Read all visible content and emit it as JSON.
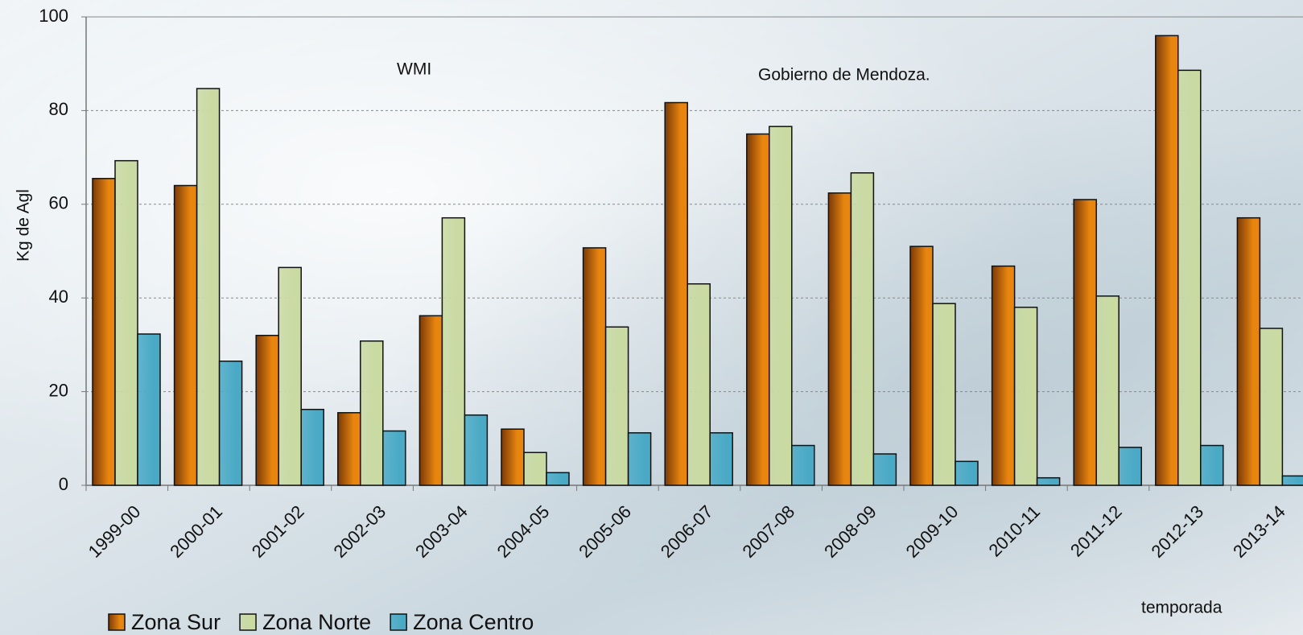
{
  "chart_data": {
    "type": "bar",
    "annotations": [
      "WMI",
      "Gobierno de Mendoza."
    ],
    "y_label": "Kg de Agl",
    "x_label": "temporada",
    "categories": [
      "1999-00",
      "2000-01",
      "2001-02",
      "2002-03",
      "2003-04",
      "2004-05",
      "2005-06",
      "2006-07",
      "2007-08",
      "2008-09",
      "2009-10",
      "2010-11",
      "2011-12",
      "2012-13",
      "2013-14"
    ],
    "series": [
      {
        "name": "Zona Sur",
        "color": "#e8850f",
        "values": [
          65.5,
          64,
          32,
          15.5,
          36.2,
          12,
          50.7,
          81.7,
          75,
          62.4,
          51,
          46.8,
          61,
          96,
          57.1
        ]
      },
      {
        "name": "Zona Norte",
        "color": "#c9daa2",
        "values": [
          69.3,
          84.7,
          46.5,
          30.8,
          57.1,
          7,
          33.8,
          43,
          76.6,
          66.7,
          38.8,
          38,
          40.4,
          88.6,
          33.5
        ]
      },
      {
        "name": "Zona Centro",
        "color": "#4aaac6",
        "values": [
          32.3,
          26.5,
          16.2,
          11.6,
          15,
          2.7,
          11.2,
          11.2,
          8.5,
          6.7,
          5.1,
          1.6,
          8.1,
          8.5,
          2
        ]
      }
    ],
    "ylim": [
      0,
      100
    ],
    "yticks": [
      0,
      20,
      40,
      60,
      80,
      100
    ],
    "grid": true
  }
}
